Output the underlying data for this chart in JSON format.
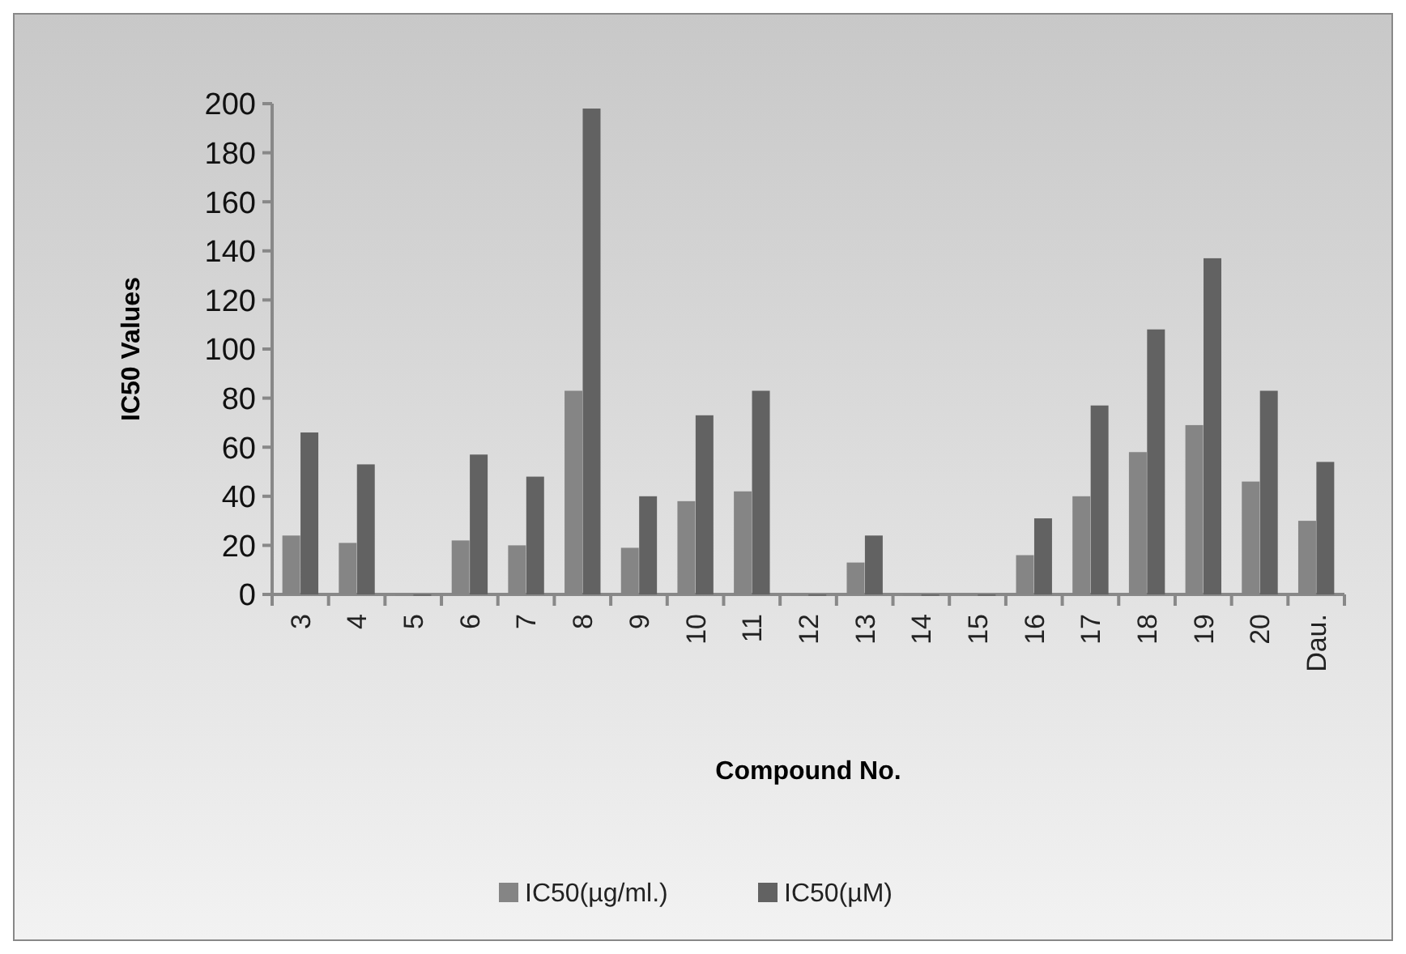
{
  "chart_data": {
    "type": "bar",
    "xlabel": "Compound No.",
    "ylabel": "IC50 Values",
    "categories": [
      "3",
      "4",
      "5",
      "6",
      "7",
      "8",
      "9",
      "10",
      "11",
      "12",
      "13",
      "14",
      "15",
      "16",
      "17",
      "18",
      "19",
      "20",
      "Dau."
    ],
    "series": [
      {
        "name": "IC50(µg/ml.)",
        "color": "#858585",
        "values": [
          24,
          21,
          0,
          22,
          20,
          83,
          19,
          38,
          42,
          0,
          13,
          0,
          0,
          16,
          40,
          58,
          69,
          46,
          30
        ]
      },
      {
        "name": "IC50(µM)",
        "color": "#626262",
        "values": [
          66,
          53,
          0,
          57,
          48,
          198,
          40,
          73,
          83,
          0,
          24,
          0,
          0,
          31,
          77,
          108,
          137,
          83,
          54
        ]
      }
    ],
    "ylim": [
      0,
      200
    ],
    "yticks": [
      0,
      20,
      40,
      60,
      80,
      100,
      120,
      140,
      160,
      180,
      200
    ],
    "grid": false,
    "legend": "bottom"
  }
}
